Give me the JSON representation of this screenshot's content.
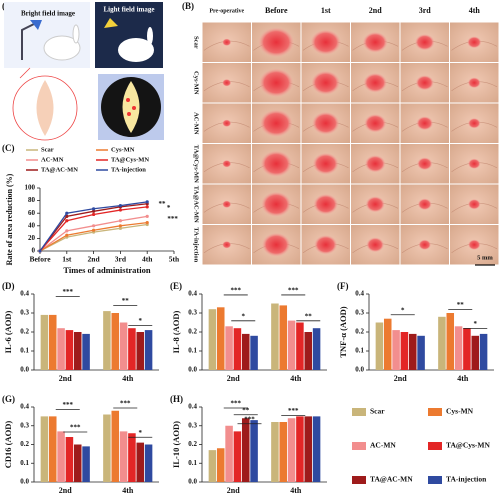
{
  "panel_a": {
    "label": "(A)",
    "bright": "Bright field image",
    "light": "Light field image"
  },
  "panel_b": {
    "label": "(B)",
    "columns": [
      "Pre-operative",
      "Before",
      "1st",
      "2nd",
      "3rd",
      "4th"
    ],
    "rows": [
      "Scar",
      "Cys-MN",
      "AC-MN",
      "TA@Cys-MN",
      "TA@AC-MN",
      "TA-injection"
    ],
    "scale": "5 mm"
  },
  "chart_data": [
    {
      "type": "line",
      "label": "(C)",
      "x_label": "Times of administration",
      "y_label": "Rate of area reduction (%)",
      "categories": [
        "Before",
        "1st",
        "2nd",
        "3rd",
        "4th",
        "5th"
      ],
      "ylim": [
        0,
        100
      ],
      "yticks": [
        0,
        20,
        40,
        60,
        80,
        100
      ],
      "series": [
        {
          "name": "Scar",
          "color": "#c9b57a",
          "values": [
            0,
            22,
            30,
            36,
            42,
            null
          ]
        },
        {
          "name": "AC-MN",
          "color": "#f28e8e",
          "values": [
            0,
            32,
            40,
            48,
            55,
            null
          ]
        },
        {
          "name": "TA@AC-MN",
          "color": "#9e1b1b",
          "values": [
            0,
            55,
            63,
            70,
            75,
            null
          ]
        },
        {
          "name": "Cys-MN",
          "color": "#ec7a30",
          "values": [
            0,
            25,
            33,
            40,
            45,
            null
          ]
        },
        {
          "name": "TA@Cys-MN",
          "color": "#e32626",
          "values": [
            0,
            48,
            58,
            65,
            70,
            null
          ]
        },
        {
          "name": "TA-injection",
          "color": "#2f4aa0",
          "values": [
            0,
            60,
            67,
            72,
            78,
            null
          ]
        }
      ],
      "annotations": [
        "*",
        "**",
        "***"
      ]
    },
    {
      "type": "bar",
      "label": "(D)",
      "y_label": "IL-6 (AOD)",
      "categories": [
        "2nd",
        "4th"
      ],
      "ylim": [
        0,
        0.4
      ],
      "yticks": [
        {
          "value": 0,
          "label": "0.0"
        },
        0.1,
        0.2,
        0.3,
        0.4
      ],
      "series": [
        {
          "name": "Scar",
          "color": "#c9b57a",
          "values": [
            0.29,
            0.31
          ]
        },
        {
          "name": "Cys-MN",
          "color": "#ec7a30",
          "values": [
            0.29,
            0.3
          ]
        },
        {
          "name": "AC-MN",
          "color": "#f28e8e",
          "values": [
            0.22,
            0.25
          ]
        },
        {
          "name": "TA@Cys-MN",
          "color": "#e32626",
          "values": [
            0.21,
            0.22
          ]
        },
        {
          "name": "TA@AC-MN",
          "color": "#9e1b1b",
          "values": [
            0.2,
            0.2
          ]
        },
        {
          "name": "TA-injection",
          "color": "#2f4aa0",
          "values": [
            0.19,
            0.21
          ]
        }
      ],
      "annotations": [
        "***",
        "**",
        "*"
      ]
    },
    {
      "type": "bar",
      "label": "(E)",
      "y_label": "IL-8 (AOD)",
      "categories": [
        "2nd",
        "4th"
      ],
      "ylim": [
        0,
        0.4
      ],
      "yticks": [
        {
          "value": 0,
          "label": "0.0"
        },
        0.1,
        0.2,
        0.3,
        0.4
      ],
      "series": [
        {
          "name": "Scar",
          "color": "#c9b57a",
          "values": [
            0.32,
            0.35
          ]
        },
        {
          "name": "Cys-MN",
          "color": "#ec7a30",
          "values": [
            0.33,
            0.34
          ]
        },
        {
          "name": "AC-MN",
          "color": "#f28e8e",
          "values": [
            0.23,
            0.26
          ]
        },
        {
          "name": "TA@Cys-MN",
          "color": "#e32626",
          "values": [
            0.22,
            0.25
          ]
        },
        {
          "name": "TA@AC-MN",
          "color": "#9e1b1b",
          "values": [
            0.19,
            0.2
          ]
        },
        {
          "name": "TA-injection",
          "color": "#2f4aa0",
          "values": [
            0.18,
            0.22
          ]
        }
      ],
      "annotations": [
        "***",
        "*",
        "***",
        "**"
      ]
    },
    {
      "type": "bar",
      "label": "(F)",
      "y_label": "TNF-α (AOD)",
      "categories": [
        "2nd",
        "4th"
      ],
      "ylim": [
        0,
        0.4
      ],
      "yticks": [
        {
          "value": 0,
          "label": "0.0"
        },
        0.1,
        0.2,
        0.3,
        0.4
      ],
      "series": [
        {
          "name": "Scar",
          "color": "#c9b57a",
          "values": [
            0.25,
            0.28
          ]
        },
        {
          "name": "Cys-MN",
          "color": "#ec7a30",
          "values": [
            0.27,
            0.3
          ]
        },
        {
          "name": "AC-MN",
          "color": "#f28e8e",
          "values": [
            0.21,
            0.23
          ]
        },
        {
          "name": "TA@Cys-MN",
          "color": "#e32626",
          "values": [
            0.2,
            0.22
          ]
        },
        {
          "name": "TA@AC-MN",
          "color": "#9e1b1b",
          "values": [
            0.19,
            0.18
          ]
        },
        {
          "name": "TA-injection",
          "color": "#2f4aa0",
          "values": [
            0.18,
            0.19
          ]
        }
      ],
      "annotations": [
        "*",
        "**",
        "*"
      ]
    },
    {
      "type": "bar",
      "label": "(G)",
      "y_label": "CD16 (AOD)",
      "categories": [
        "2nd",
        "4th"
      ],
      "ylim": [
        0,
        0.4
      ],
      "yticks": [
        {
          "value": 0,
          "label": "0.0"
        },
        0.1,
        0.2,
        0.3,
        0.4
      ],
      "series": [
        {
          "name": "Scar",
          "color": "#c9b57a",
          "values": [
            0.35,
            0.36
          ]
        },
        {
          "name": "Cys-MN",
          "color": "#ec7a30",
          "values": [
            0.35,
            0.38
          ]
        },
        {
          "name": "AC-MN",
          "color": "#f28e8e",
          "values": [
            0.27,
            0.27
          ]
        },
        {
          "name": "TA@Cys-MN",
          "color": "#e32626",
          "values": [
            0.24,
            0.26
          ]
        },
        {
          "name": "TA@AC-MN",
          "color": "#9e1b1b",
          "values": [
            0.2,
            0.21
          ]
        },
        {
          "name": "TA-injection",
          "color": "#2f4aa0",
          "values": [
            0.19,
            0.2
          ]
        }
      ],
      "annotations": [
        "***",
        "***",
        "***",
        "*"
      ]
    },
    {
      "type": "bar",
      "label": "(H)",
      "y_label": "IL-10 (AOD)",
      "categories": [
        "2nd",
        "4th"
      ],
      "ylim": [
        0,
        0.4
      ],
      "yticks": [
        {
          "value": 0,
          "label": "0.0"
        },
        0.1,
        0.2,
        0.3,
        0.4
      ],
      "series": [
        {
          "name": "Scar",
          "color": "#c9b57a",
          "values": [
            0.17,
            0.32
          ]
        },
        {
          "name": "Cys-MN",
          "color": "#ec7a30",
          "values": [
            0.18,
            0.32
          ]
        },
        {
          "name": "AC-MN",
          "color": "#f28e8e",
          "values": [
            0.3,
            0.34
          ]
        },
        {
          "name": "TA@Cys-MN",
          "color": "#e32626",
          "values": [
            0.27,
            0.35
          ]
        },
        {
          "name": "TA@AC-MN",
          "color": "#9e1b1b",
          "values": [
            0.34,
            0.35
          ]
        },
        {
          "name": "TA-injection",
          "color": "#2f4aa0",
          "values": [
            0.33,
            0.35
          ]
        }
      ],
      "annotations": [
        "***",
        "**",
        "***",
        "***"
      ]
    }
  ]
}
